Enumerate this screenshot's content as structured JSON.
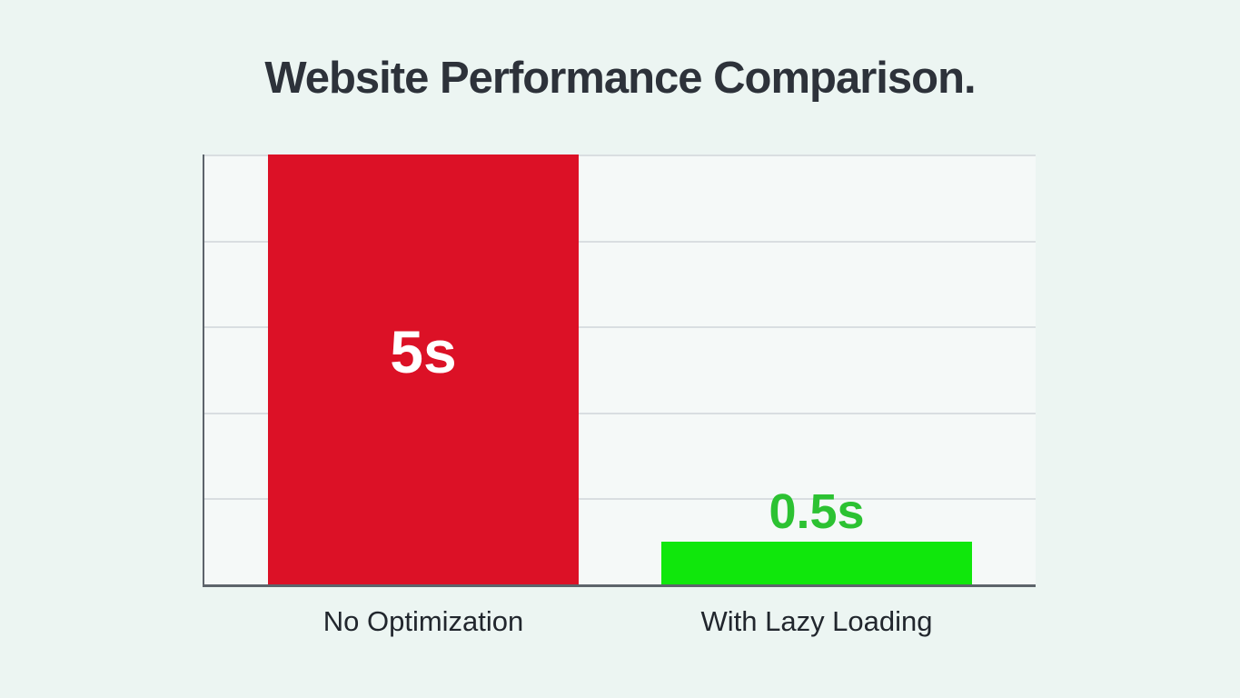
{
  "title": "Website Performance Comparison.",
  "colors": {
    "page_background": "#ecf5f2",
    "plot_background": "#f5f9f8",
    "gridline": "#d9dee1",
    "axis": "#5d646b",
    "title_text": "#2d323a",
    "category_text": "#21262d",
    "value_text_on_red_bar": "#ffffff",
    "value_text_above_green_bar": "#2cc232"
  },
  "chart_data": {
    "type": "bar",
    "title": "Website Performance Comparison.",
    "categories": [
      "No Optimization",
      "With Lazy Loading"
    ],
    "values": [
      5,
      0.5
    ],
    "value_labels": [
      "5s",
      "0.5s"
    ],
    "unit": "seconds",
    "ylim": [
      0,
      5
    ],
    "gridline_interval": 1,
    "grid": true,
    "legend": false,
    "bar_colors": [
      "#dc1126",
      "#10e70c"
    ],
    "layout_hints": {
      "orientation": "vertical",
      "axis_tick_labels_visible": false,
      "value_label_position": [
        "inside-top",
        "above"
      ]
    }
  }
}
